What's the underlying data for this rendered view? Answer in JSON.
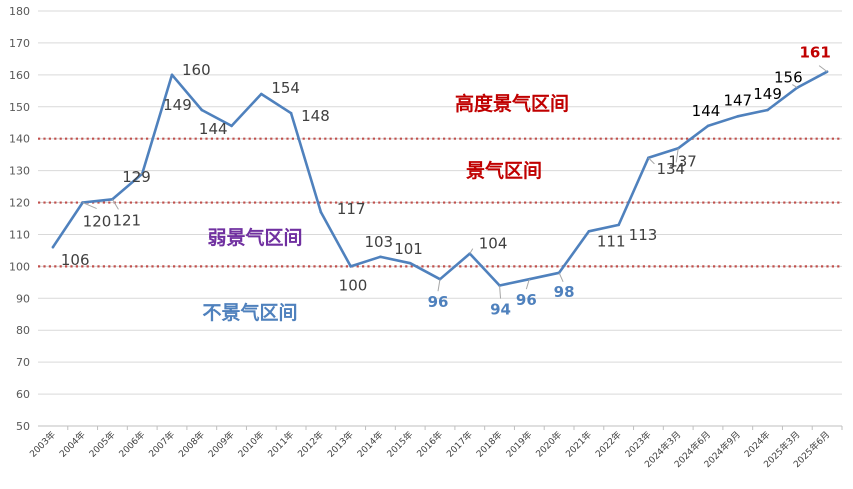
{
  "chart_data": {
    "type": "line",
    "title": "",
    "xlabel": "",
    "ylabel": "",
    "ylim": [
      50,
      180
    ],
    "yticks": [
      50,
      60,
      70,
      80,
      90,
      100,
      110,
      120,
      130,
      140,
      150,
      160,
      170,
      180
    ],
    "grid": true,
    "categories": [
      "2003年",
      "2004年",
      "2005年",
      "2006年",
      "2007年",
      "2008年",
      "2009年",
      "2010年",
      "2011年",
      "2012年",
      "2013年",
      "2014年",
      "2015年",
      "2016年",
      "2017年",
      "2018年",
      "2019年",
      "2020年",
      "2021年",
      "2022年",
      "2023年",
      "2024年3月",
      "2024年6月",
      "2024年9月",
      "2024年",
      "2025年3月",
      "2025年6月"
    ],
    "values": [
      106,
      120,
      121,
      129,
      160,
      149,
      144,
      154,
      148,
      117,
      100,
      103,
      101,
      96,
      104,
      94,
      96,
      98,
      111,
      113,
      134,
      137,
      144,
      147,
      149,
      156,
      161
    ],
    "value_labels": [
      "106",
      "120",
      "121",
      "129",
      "160",
      "149",
      "144",
      "154",
      "148",
      "117",
      "100",
      "103",
      "101",
      "96",
      "104",
      "94",
      "96",
      "98",
      "111",
      "113",
      "134",
      "137",
      "144",
      "147",
      "149",
      "156",
      "161"
    ],
    "line_color": "#4f81bd",
    "thresholds": [
      {
        "value": 140,
        "color": "#c0504d"
      },
      {
        "value": 120,
        "color": "#c0504d"
      },
      {
        "value": 100,
        "color": "#c0504d"
      }
    ],
    "zones": [
      {
        "label": "高度景气区间",
        "color": "#c00000"
      },
      {
        "label": "景气区间",
        "color": "#c00000"
      },
      {
        "label": "弱景气区间",
        "color": "#7030a0"
      },
      {
        "label": "不景气区间",
        "color": "#4f81bd"
      }
    ]
  }
}
